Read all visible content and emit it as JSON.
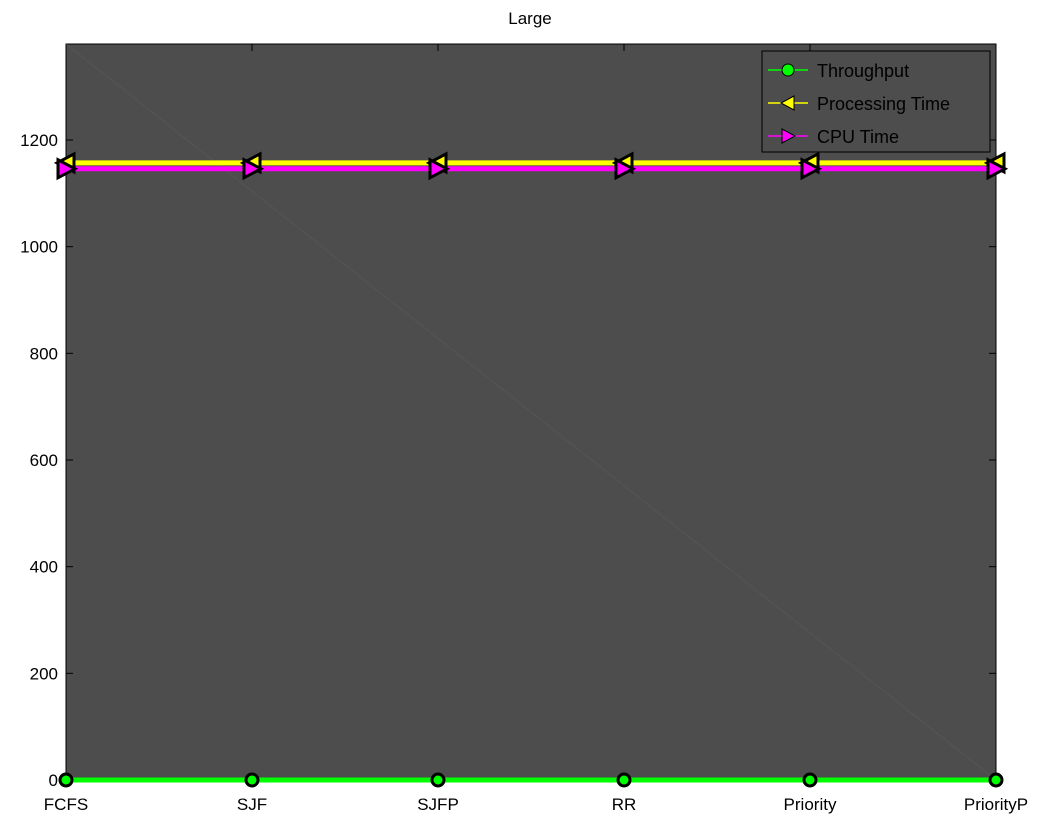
{
  "chart_data": {
    "type": "line",
    "title": "Large",
    "xlabel": "",
    "ylabel": "",
    "categories": [
      "FCFS",
      "SJF",
      "SJFP",
      "RR",
      "Priority",
      "PriorityP"
    ],
    "ylim": [
      0,
      1380
    ],
    "yticks": [
      0,
      200,
      400,
      600,
      800,
      1000,
      1200
    ],
    "grid": false,
    "legend_position": "top-right",
    "background_color": "#4d4d4d",
    "series": [
      {
        "name": "Throughput",
        "values": [
          0,
          0,
          0,
          0,
          0,
          0
        ],
        "color": "#00ff00",
        "marker": "circle"
      },
      {
        "name": "Processing Time",
        "values": [
          1157,
          1157,
          1157,
          1157,
          1157,
          1157
        ],
        "color": "#ffff00",
        "marker": "triangle-left"
      },
      {
        "name": "CPU Time",
        "values": [
          1146,
          1146,
          1146,
          1146,
          1146,
          1146
        ],
        "color": "#ff00ff",
        "marker": "triangle-right"
      }
    ]
  }
}
